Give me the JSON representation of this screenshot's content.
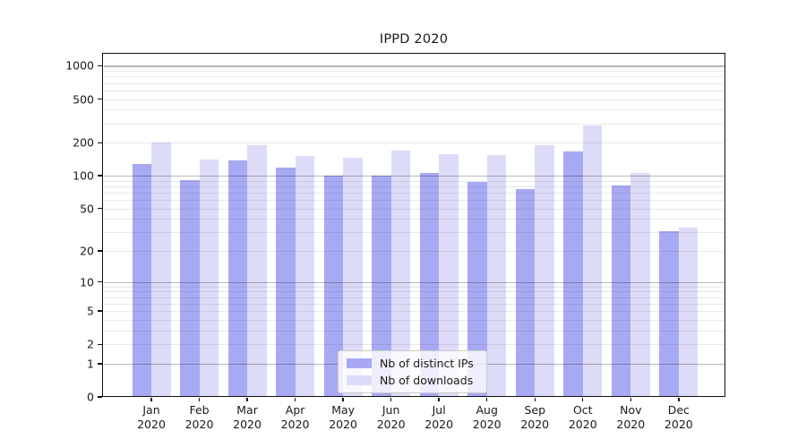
{
  "chart_data": {
    "type": "bar",
    "title": "IPPD 2020",
    "x_categories": [
      "Jan",
      "Feb",
      "Mar",
      "Apr",
      "May",
      "Jun",
      "Jul",
      "Aug",
      "Sep",
      "Oct",
      "Nov",
      "Dec"
    ],
    "x_year_label": "2020",
    "series": [
      {
        "name": "Nb of distinct IPs",
        "color": "#a9a9f3",
        "values": [
          127,
          92,
          137,
          120,
          100,
          100,
          107,
          88,
          75,
          168,
          81,
          31
        ]
      },
      {
        "name": "Nb of downloads",
        "color": "#dcdcf9",
        "values": [
          200,
          140,
          192,
          153,
          145,
          170,
          158,
          155,
          189,
          285,
          106,
          33
        ]
      }
    ],
    "y_axis": {
      "scale": "log10(value+1)",
      "tick_labels": [
        0,
        1,
        2,
        5,
        10,
        20,
        50,
        100,
        200,
        500,
        1000
      ],
      "major_gridlines": [
        1,
        10,
        100,
        1000
      ],
      "top_value": 1300
    },
    "grid": "horizontal major+minor, no vertical",
    "legend_position": "inside bottom-center"
  },
  "colors": {
    "bar_ips": "#a9a9f3",
    "bar_downloads": "#dcdcf9",
    "grid_major": "rgba(0,0,0,0.28)",
    "grid_minor": "rgba(0,0,0,0.085)",
    "axis_line": "#111111",
    "text": "#1a1a1a",
    "legend_border": "#cccccc",
    "legend_background": "rgba(255,255,255,0.8)"
  }
}
